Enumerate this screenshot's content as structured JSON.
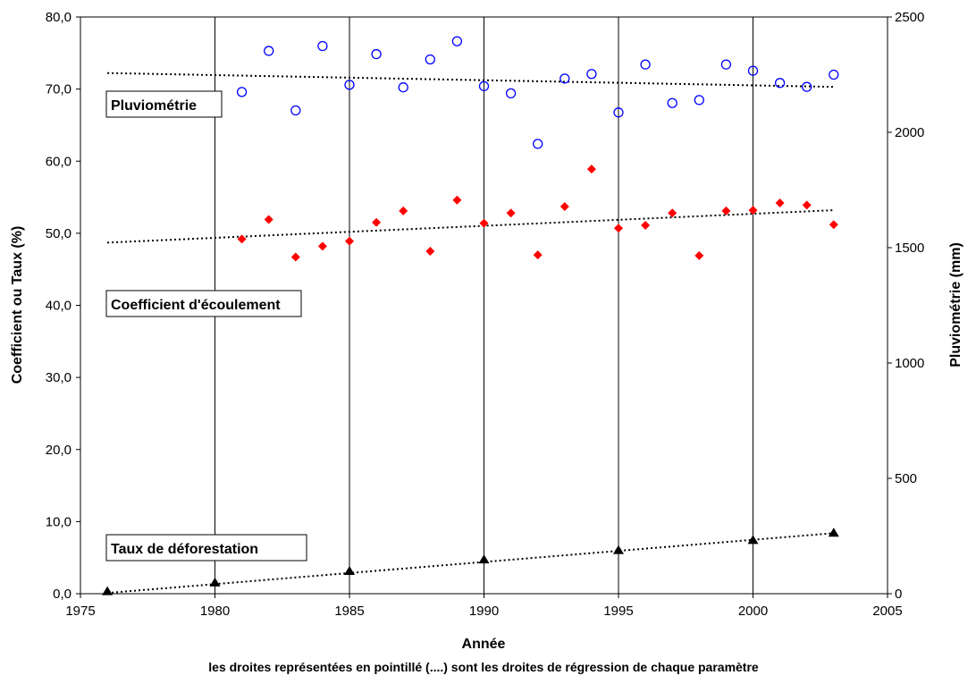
{
  "chart_data": {
    "type": "scatter",
    "x_axis": {
      "label": "Année",
      "min": 1975,
      "max": 2005,
      "ticks": [
        1975,
        1980,
        1985,
        1990,
        1995,
        2000,
        2005
      ]
    },
    "y_left": {
      "label": "Coefficient ou Taux  (%)",
      "min": 0,
      "max": 80,
      "ticks": [
        "0,0",
        "10,0",
        "20,0",
        "30,0",
        "40,0",
        "50,0",
        "60,0",
        "70,0",
        "80,0"
      ]
    },
    "y_right": {
      "label": "Pluviométrie  (mm)",
      "min": 0,
      "max": 2500,
      "ticks": [
        "0",
        "500",
        "1000",
        "1500",
        "2000",
        "2500"
      ]
    },
    "vertical_gridlines": [
      1980,
      1985,
      1990,
      1995,
      2000
    ],
    "note": "les droites représentées en pointillé (....) sont les droites de régression de chaque paramètre",
    "series": [
      {
        "name": "Pluviométrie",
        "axis": "right",
        "marker": "open-circle",
        "color": "#0000ff",
        "x": [
          1981,
          1982,
          1983,
          1984,
          1985,
          1986,
          1987,
          1988,
          1989,
          1990,
          1991,
          1992,
          1993,
          1994,
          1995,
          1996,
          1997,
          1998,
          1999,
          2000,
          2001,
          2002,
          2003
        ],
        "y": [
          2175,
          2353,
          2095,
          2374,
          2206,
          2339,
          2195,
          2316,
          2395,
          2200,
          2169,
          1950,
          2233,
          2253,
          2086,
          2294,
          2127,
          2140,
          2294,
          2267,
          2214,
          2197,
          2250
        ],
        "trend": {
          "x": [
            1976,
            2003
          ],
          "y": [
            2257,
            2197
          ]
        }
      },
      {
        "name": "Coefficient d'écoulement",
        "axis": "left",
        "marker": "diamond",
        "color": "#ff0000",
        "x": [
          1981,
          1982,
          1983,
          1984,
          1985,
          1986,
          1987,
          1988,
          1989,
          1990,
          1991,
          1992,
          1993,
          1994,
          1995,
          1996,
          1997,
          1998,
          1999,
          2000,
          2001,
          2002,
          2003
        ],
        "y": [
          49.2,
          51.9,
          46.7,
          48.2,
          48.9,
          51.5,
          53.1,
          47.5,
          54.6,
          51.4,
          52.8,
          47.0,
          53.7,
          58.9,
          50.7,
          51.1,
          52.8,
          46.9,
          53.1,
          53.2,
          54.2,
          53.9,
          51.2
        ],
        "trend": {
          "x": [
            1976,
            2003
          ],
          "y": [
            48.7,
            53.2
          ]
        }
      },
      {
        "name": "Taux de déforestation",
        "axis": "left",
        "marker": "triangle",
        "color": "#000000",
        "x": [
          1976,
          1980,
          1985,
          1990,
          1995,
          2000,
          2003
        ],
        "y": [
          0.3,
          1.5,
          3.1,
          4.7,
          6.0,
          7.4,
          8.4
        ],
        "trend": {
          "x": [
            1976,
            2003
          ],
          "y": [
            0.1,
            8.4
          ]
        }
      }
    ]
  }
}
